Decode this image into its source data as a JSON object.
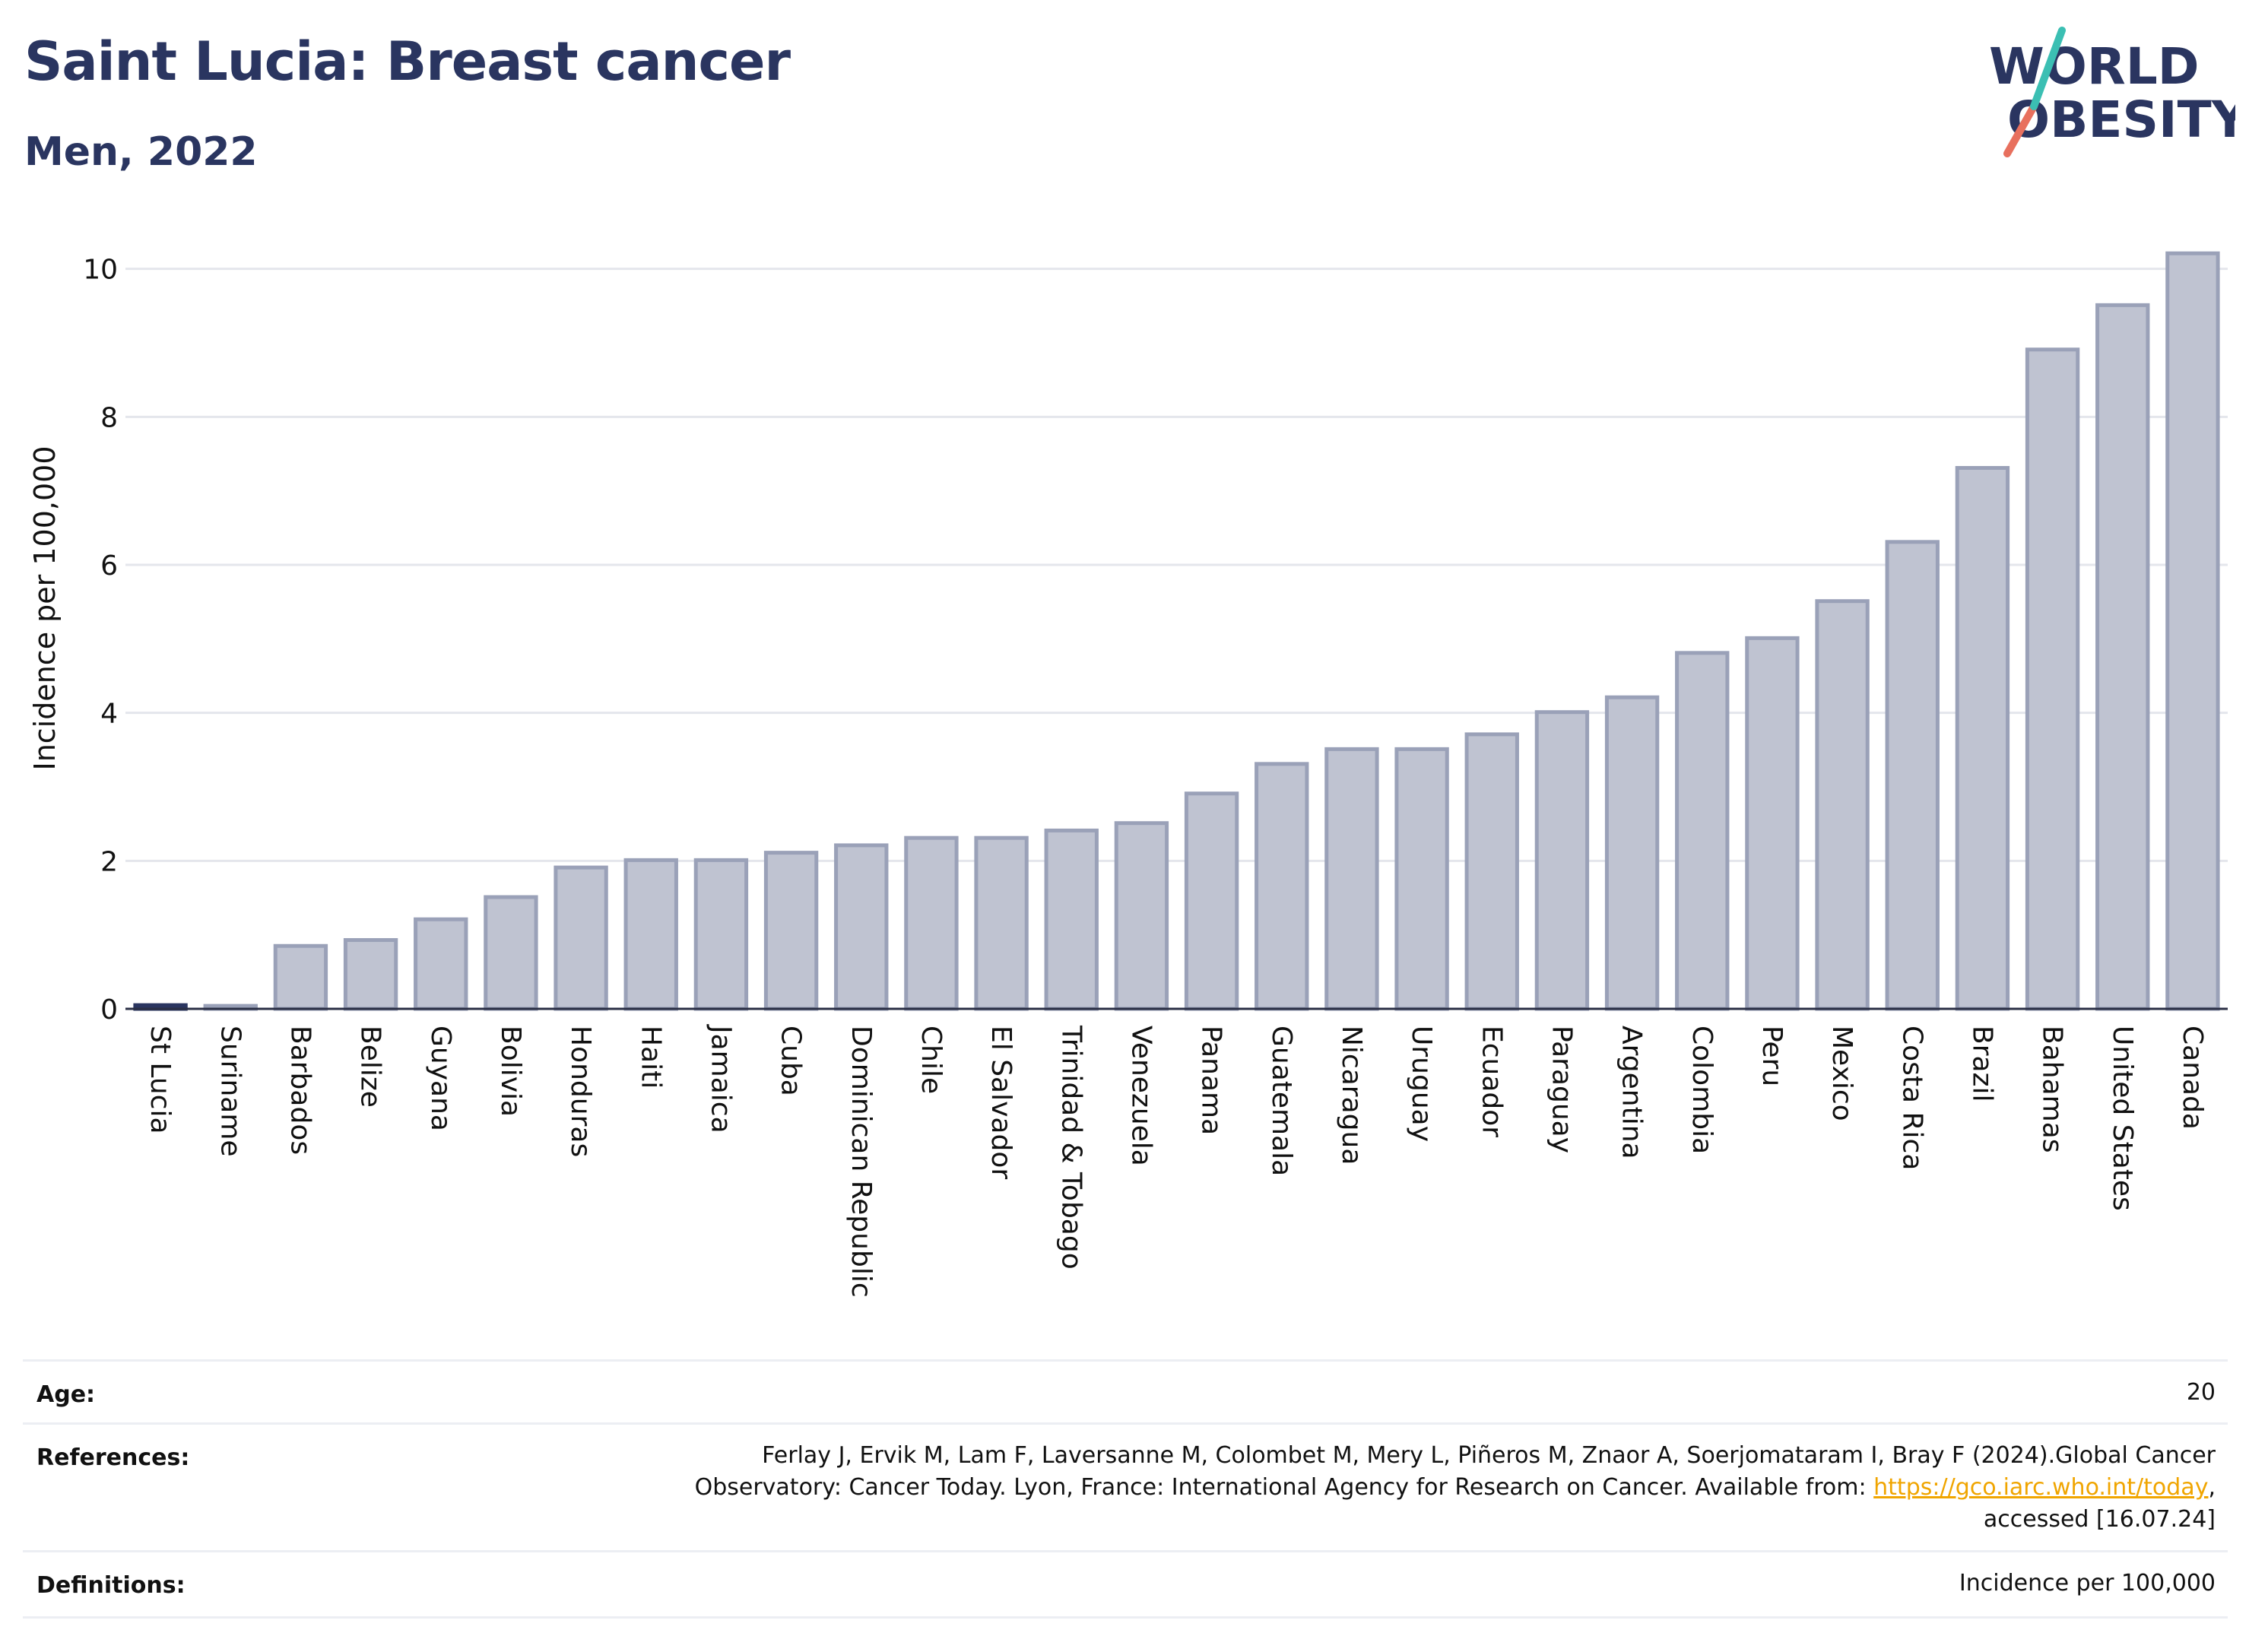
{
  "title": "Saint Lucia: Breast cancer",
  "subtitle": "Men, 2022",
  "logo": {
    "line1": "WORLD",
    "line2": "OBESITY"
  },
  "colors": {
    "bar": "#bfc3d1",
    "bar_border": "#9aa1b8",
    "highlight": "#2a3560",
    "title": "#2a3560",
    "grid": "#e4e6ec",
    "link": "#f0a500"
  },
  "chart_data": {
    "type": "bar",
    "ylabel": "Incidence per 100,000",
    "ylim": [
      0,
      10.5
    ],
    "yticks": [
      0,
      2,
      4,
      6,
      8,
      10
    ],
    "grid": true,
    "highlight": "St Lucia",
    "categories": [
      "St Lucia",
      "Suriname",
      "Barbados",
      "Belize",
      "Guyana",
      "Bolivia",
      "Honduras",
      "Haiti",
      "Jamaica",
      "Cuba",
      "Dominican Republic",
      "Chile",
      "El Salvador",
      "Trinidad & Tobago",
      "Venezuela",
      "Panama",
      "Guatemala",
      "Nicaragua",
      "Uruguay",
      "Ecuador",
      "Paraguay",
      "Argentina",
      "Colombia",
      "Peru",
      "Mexico",
      "Costa Rica",
      "Brazil",
      "Bahamas",
      "United States",
      "Canada"
    ],
    "values": [
      0.05,
      0.04,
      0.85,
      0.93,
      1.21,
      1.51,
      1.91,
      2.01,
      2.01,
      2.11,
      2.21,
      2.31,
      2.31,
      2.41,
      2.51,
      2.91,
      3.31,
      3.51,
      3.51,
      3.71,
      4.01,
      4.21,
      4.81,
      5.01,
      5.51,
      6.31,
      7.31,
      8.91,
      9.51,
      10.21
    ]
  },
  "meta": {
    "age_label": "Age:",
    "age_value": "20",
    "references_label": "References:",
    "references_line1": "Ferlay J, Ervik M, Lam F, Laversanne M, Colombet M, Mery L, Piñeros M, Znaor A, Soerjomataram I, Bray F (2024).Global Cancer",
    "references_line2_pre": "Observatory: Cancer Today. Lyon, France: International Agency for Research on Cancer. Available from: ",
    "references_link": "https://gco.iarc.who.int/today",
    "references_line2_post": ",",
    "references_line3": "accessed [16.07.24]",
    "definitions_label": "Definitions:",
    "definitions_value": "Incidence per 100,000"
  }
}
